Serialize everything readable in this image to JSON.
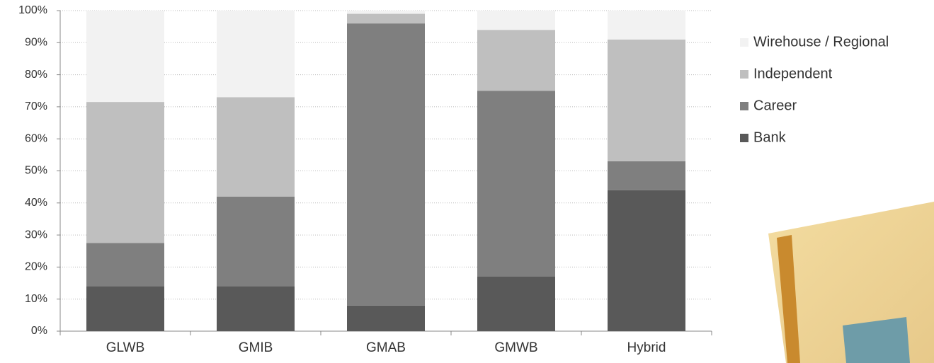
{
  "chart_data": {
    "type": "stacked_bar",
    "categories": [
      "GLWB",
      "GMIB",
      "GMAB",
      "GMWB",
      "Hybrid"
    ],
    "series": [
      {
        "name": "Bank",
        "color": "#595959",
        "values": [
          14,
          14,
          8,
          17,
          44
        ]
      },
      {
        "name": "Career",
        "color": "#7f7f7f",
        "values": [
          13.5,
          28,
          88,
          58,
          9
        ]
      },
      {
        "name": "Independent",
        "color": "#bfbfbf",
        "values": [
          44,
          31,
          3,
          19,
          38
        ]
      },
      {
        "name": "Wirehouse / Regional",
        "color": "#f2f2f2",
        "values": [
          28.5,
          27,
          1,
          6,
          9
        ]
      }
    ],
    "ylim": [
      0,
      100
    ],
    "yticks": [
      {
        "value": 0,
        "label": "0%"
      },
      {
        "value": 10,
        "label": "10%"
      },
      {
        "value": 20,
        "label": "20%"
      },
      {
        "value": 30,
        "label": "30%"
      },
      {
        "value": 40,
        "label": "40%"
      },
      {
        "value": 50,
        "label": "50%"
      },
      {
        "value": 60,
        "label": "60%"
      },
      {
        "value": 70,
        "label": "70%"
      },
      {
        "value": 80,
        "label": "80%"
      },
      {
        "value": 90,
        "label": "90%"
      },
      {
        "value": 100,
        "label": "100%"
      }
    ],
    "grid": true,
    "legend": "right"
  }
}
